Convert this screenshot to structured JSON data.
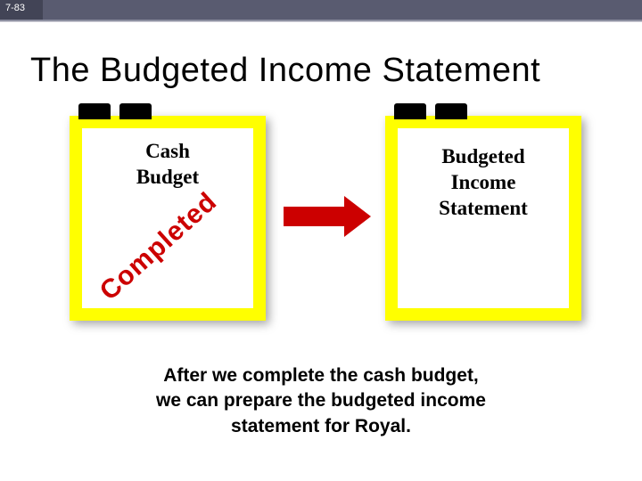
{
  "slide_number": "7-83",
  "colors": {
    "topbar_dark": "#424456",
    "topbar_main": "#595b70",
    "underline": "#8d8fa0",
    "card_bg": "#ffff00",
    "card_inner": "#ffffff",
    "accent_red": "#cc0000",
    "text_black": "#000000"
  },
  "title": "The Budgeted Income Statement",
  "card1": {
    "line1": "Cash",
    "line2": "Budget"
  },
  "completed_label": "Completed",
  "card2": {
    "line1": "Budgeted",
    "line2": "Income",
    "line3": "Statement"
  },
  "footer": {
    "line1": "After we complete the cash budget,",
    "line2": "we can prepare the budgeted income",
    "line3": "statement for Royal."
  }
}
